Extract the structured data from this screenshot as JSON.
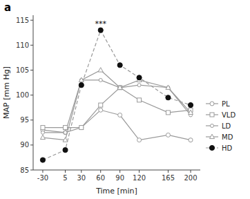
{
  "chart_data": {
    "type": "line",
    "title": "a",
    "x_label": "Time [min]",
    "y_label": "MAP [mm Hg]",
    "x": [
      -30,
      5,
      30,
      60,
      90,
      120,
      165,
      200
    ],
    "series": [
      {
        "name": "PL",
        "color": "#999999",
        "marker": "circle-open",
        "line_style": "solid",
        "values": [
          93.0,
          92.5,
          93.5,
          97.0,
          96.0,
          91.0,
          92.0,
          91.0
        ]
      },
      {
        "name": "VLD",
        "color": "#999999",
        "marker": "square-open",
        "line_style": "solid",
        "values": [
          93.5,
          93.5,
          93.5,
          98.0,
          101.5,
          99.0,
          96.5,
          97.0
        ]
      },
      {
        "name": "LD",
        "color": "#999999",
        "marker": "circle-open",
        "line_style": "solid",
        "values": [
          92.5,
          92.5,
          103.0,
          103.0,
          101.5,
          102.0,
          101.5,
          96.0
        ]
      },
      {
        "name": "MD",
        "color": "#999999",
        "marker": "triangle-open",
        "line_style": "solid",
        "values": [
          91.5,
          91.0,
          103.0,
          105.0,
          101.5,
          103.0,
          101.5,
          96.5
        ]
      },
      {
        "name": "HD",
        "color": "#999999",
        "marker": "circle-filled",
        "line_style": "dashed",
        "values": [
          87.0,
          89.0,
          102.0,
          113.0,
          106.0,
          103.5,
          99.5,
          98.0
        ]
      }
    ],
    "annotations": [
      {
        "text": "***",
        "x": 60,
        "y": 113.2
      }
    ],
    "xlim": [
      -45,
      215
    ],
    "ylim": [
      85,
      116
    ],
    "xticks": [
      -30,
      5,
      30,
      60,
      90,
      120,
      165,
      200
    ],
    "yticks": [
      85,
      90,
      95,
      100,
      105,
      110,
      115
    ],
    "grid": false,
    "legend": "right"
  }
}
